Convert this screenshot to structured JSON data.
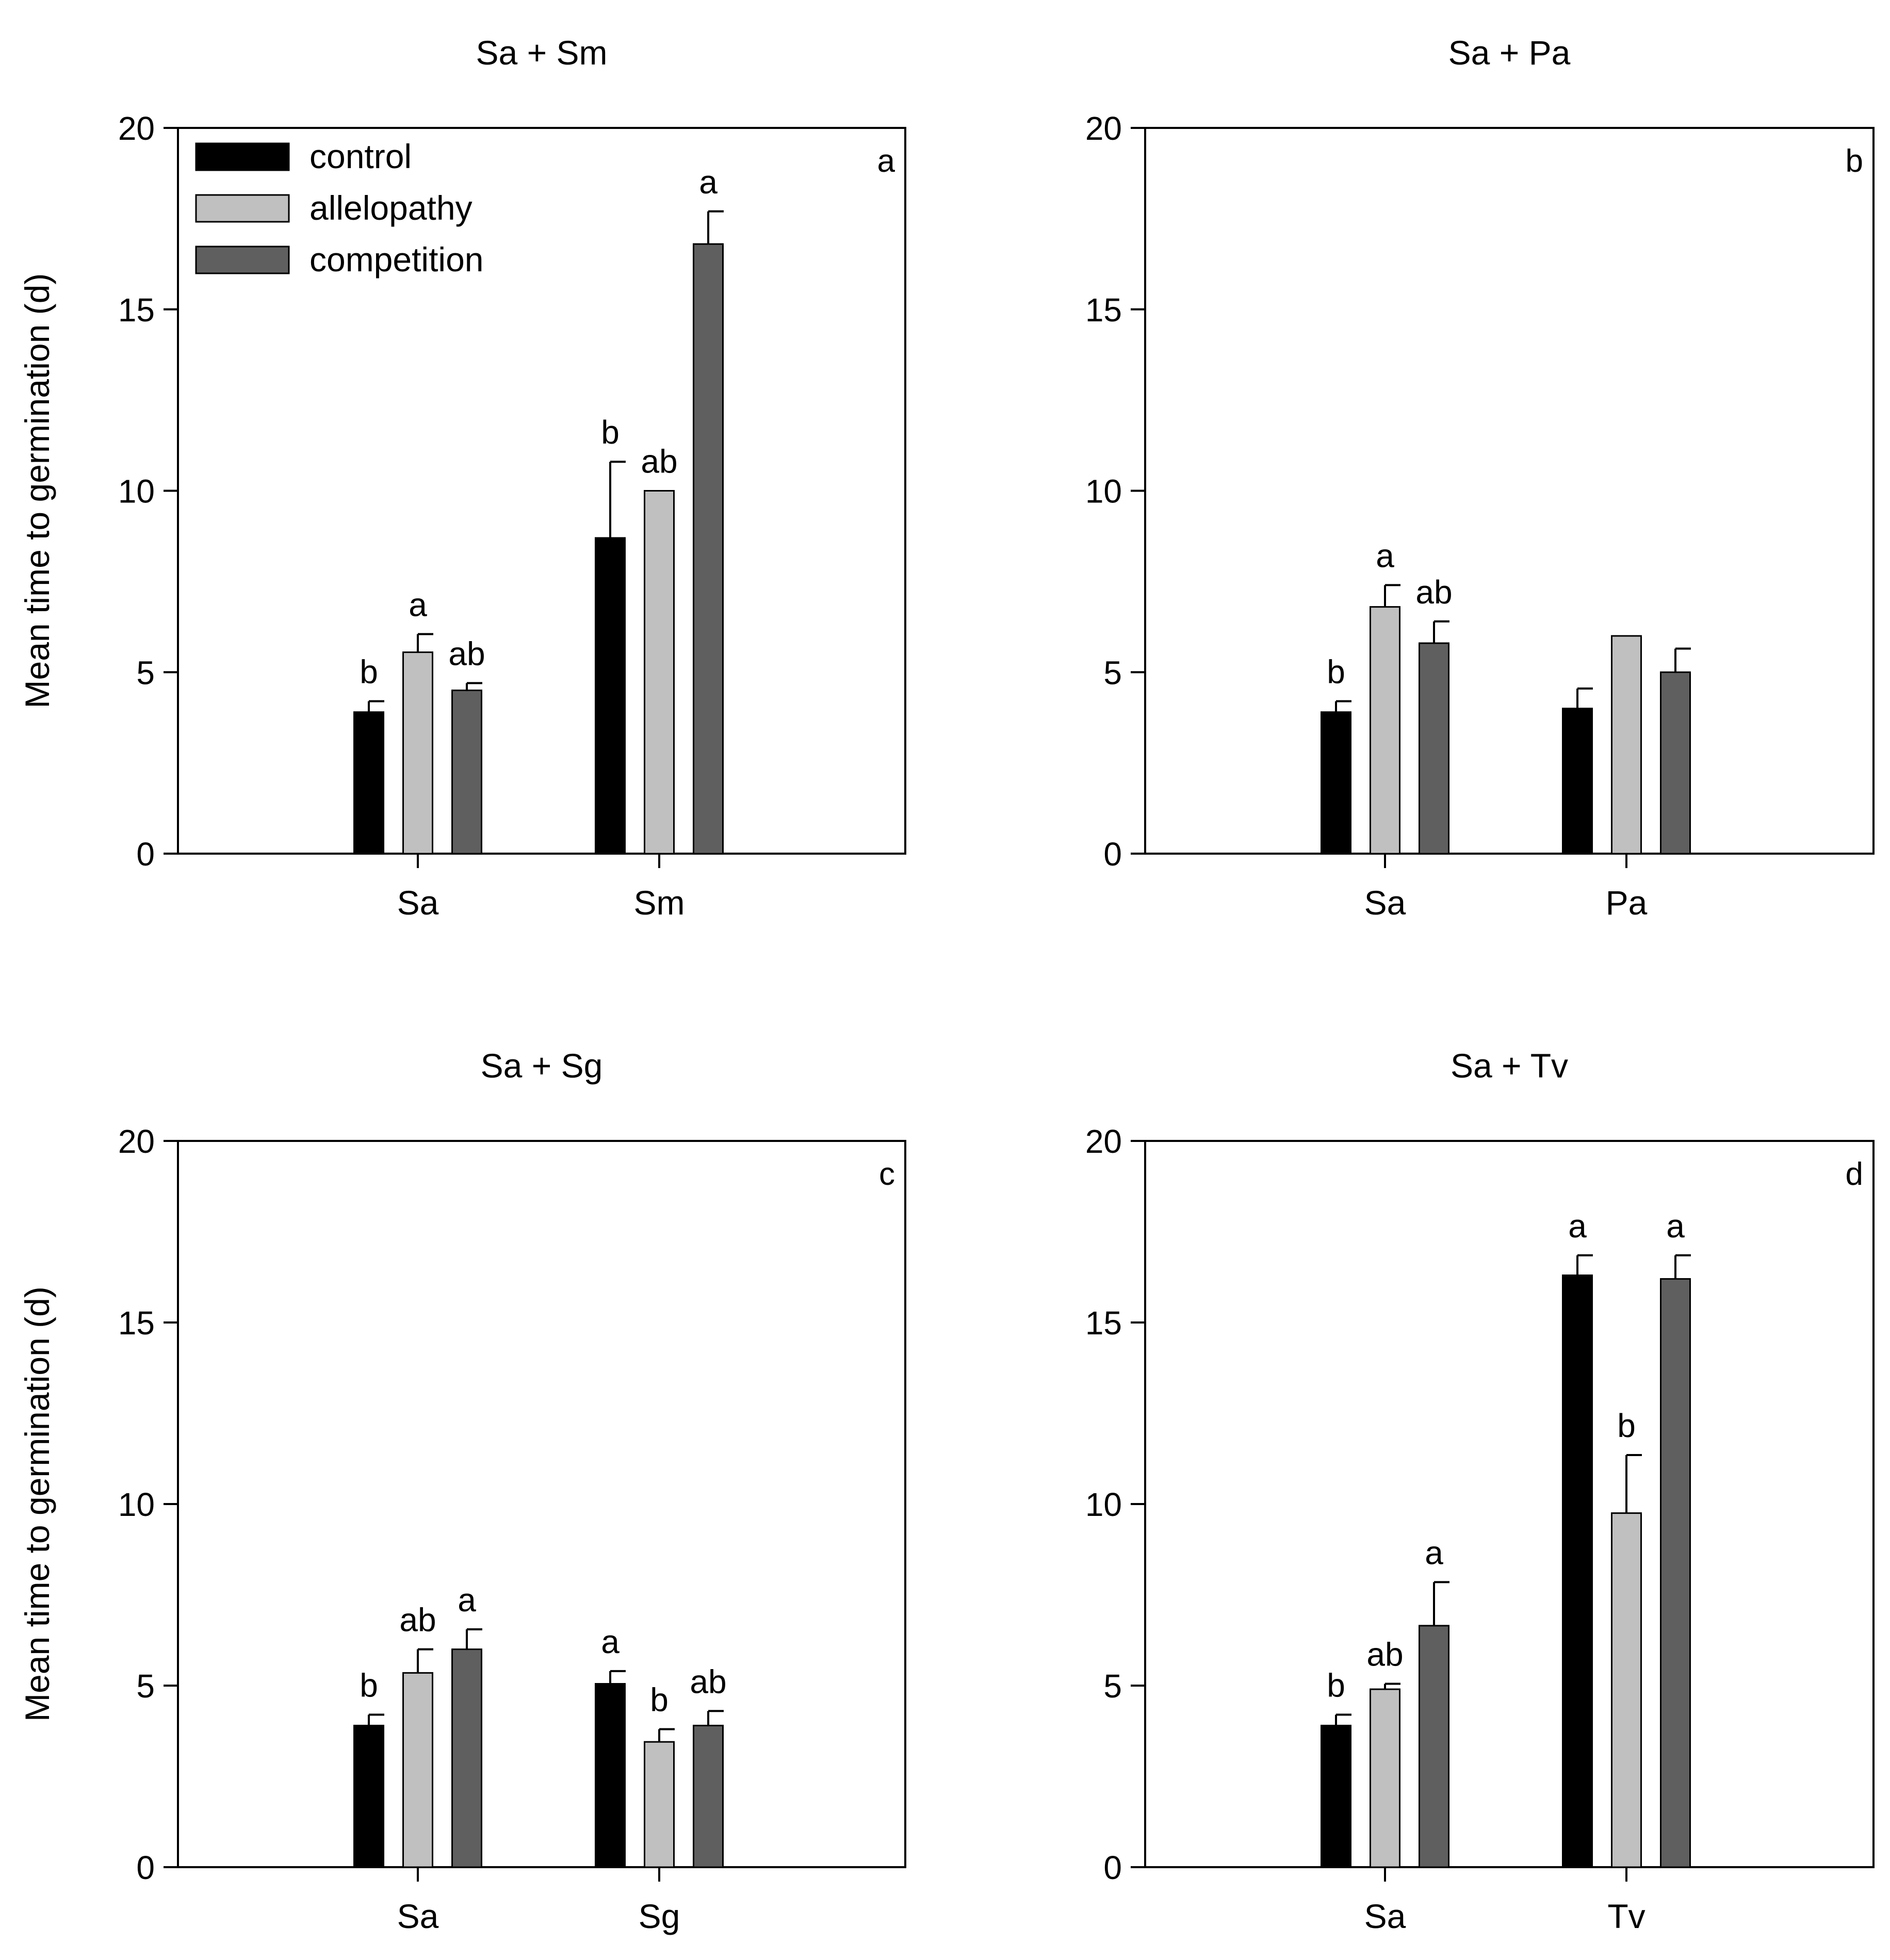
{
  "y_axis_label": "Mean time to germination (d)",
  "legend": [
    {
      "label": "control",
      "color": "#000000"
    },
    {
      "label": "allelopathy",
      "color": "#c0c0c0"
    },
    {
      "label": "competition",
      "color": "#5f5f5f"
    }
  ],
  "chart_data": [
    {
      "type": "bar",
      "title": "Sa + Sm",
      "panel_letter": "a",
      "ylabel": "Mean time to germination (d)",
      "ylim": [
        0,
        20
      ],
      "yticks": [
        0,
        5,
        10,
        15,
        20
      ],
      "categories": [
        "Sa",
        "Sm"
      ],
      "series": [
        {
          "name": "control",
          "values": [
            3.9,
            8.7
          ],
          "errors": [
            0.3,
            2.1
          ],
          "labels": [
            "b",
            "b"
          ]
        },
        {
          "name": "allelopathy",
          "values": [
            5.55,
            10.0
          ],
          "errors": [
            0.5,
            0.0
          ],
          "labels": [
            "a",
            "ab"
          ]
        },
        {
          "name": "competition",
          "values": [
            4.5,
            16.8
          ],
          "errors": [
            0.2,
            0.9
          ],
          "labels": [
            "ab",
            "a"
          ]
        }
      ],
      "legend_visible": true
    },
    {
      "type": "bar",
      "title": "Sa + Pa",
      "panel_letter": "b",
      "ylabel": "",
      "ylim": [
        0,
        20
      ],
      "yticks": [
        0,
        5,
        10,
        15,
        20
      ],
      "categories": [
        "Sa",
        "Pa"
      ],
      "series": [
        {
          "name": "control",
          "values": [
            3.9,
            4.0
          ],
          "errors": [
            0.3,
            0.55
          ],
          "labels": [
            "b",
            ""
          ]
        },
        {
          "name": "allelopathy",
          "values": [
            6.8,
            6.0
          ],
          "errors": [
            0.6,
            0.0
          ],
          "labels": [
            "a",
            ""
          ]
        },
        {
          "name": "competition",
          "values": [
            5.8,
            5.0
          ],
          "errors": [
            0.6,
            0.65
          ],
          "labels": [
            "ab",
            ""
          ]
        }
      ],
      "legend_visible": false
    },
    {
      "type": "bar",
      "title": "Sa + Sg",
      "panel_letter": "c",
      "ylabel": "Mean time to germination (d)",
      "ylim": [
        0,
        20
      ],
      "yticks": [
        0,
        5,
        10,
        15,
        20
      ],
      "categories": [
        "Sa",
        "Sg"
      ],
      "series": [
        {
          "name": "control",
          "values": [
            3.9,
            5.05
          ],
          "errors": [
            0.3,
            0.35
          ],
          "labels": [
            "b",
            "a"
          ]
        },
        {
          "name": "allelopathy",
          "values": [
            5.35,
            3.45
          ],
          "errors": [
            0.65,
            0.35
          ],
          "labels": [
            "ab",
            "b"
          ]
        },
        {
          "name": "competition",
          "values": [
            6.0,
            3.9
          ],
          "errors": [
            0.55,
            0.4
          ],
          "labels": [
            "a",
            "ab"
          ]
        }
      ],
      "legend_visible": false
    },
    {
      "type": "bar",
      "title": "Sa + Tv",
      "panel_letter": "d",
      "ylabel": "",
      "ylim": [
        0,
        20
      ],
      "yticks": [
        0,
        5,
        10,
        15,
        20
      ],
      "categories": [
        "Sa",
        "Tv"
      ],
      "series": [
        {
          "name": "control",
          "values": [
            3.9,
            16.3
          ],
          "errors": [
            0.3,
            0.55
          ],
          "labels": [
            "b",
            "a"
          ]
        },
        {
          "name": "allelopathy",
          "values": [
            4.9,
            9.75
          ],
          "errors": [
            0.15,
            1.6
          ],
          "labels": [
            "ab",
            "b"
          ]
        },
        {
          "name": "competition",
          "values": [
            6.65,
            16.2
          ],
          "errors": [
            1.2,
            0.65
          ],
          "labels": [
            "a",
            "a"
          ]
        }
      ],
      "legend_visible": false
    }
  ]
}
